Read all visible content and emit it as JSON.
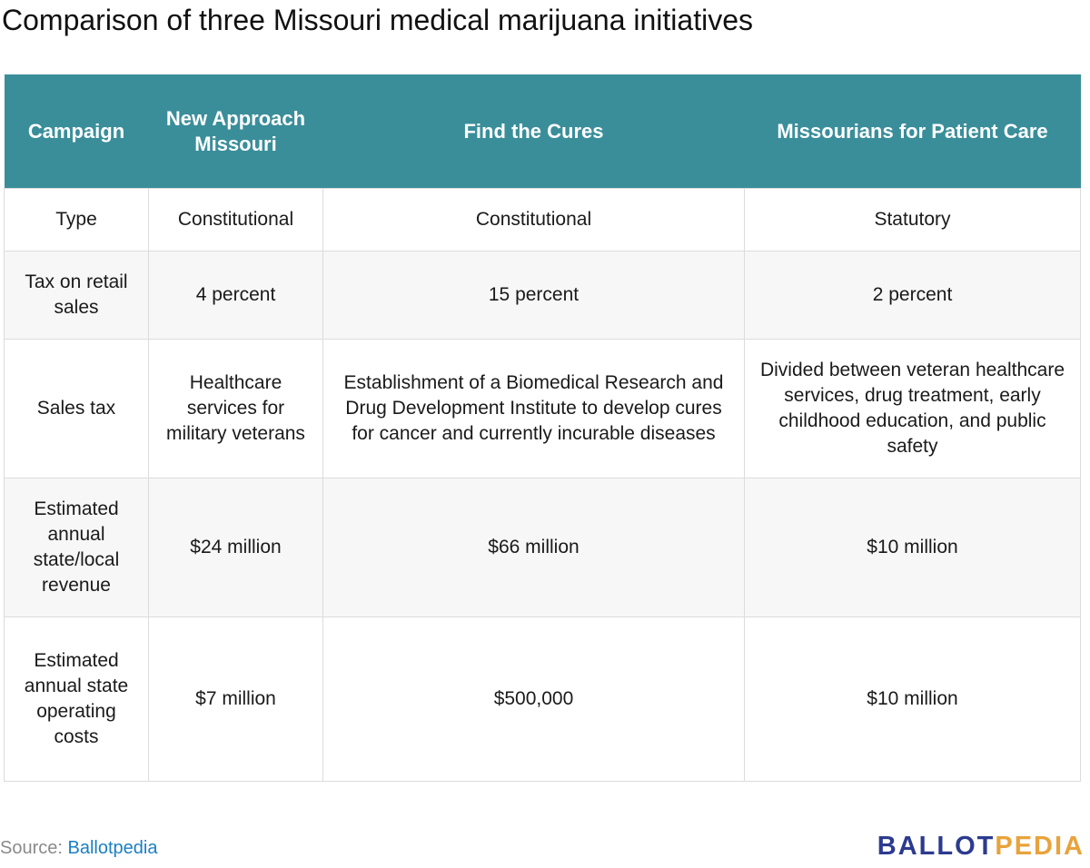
{
  "title": "Comparison of three Missouri medical marijuana initiatives",
  "table": {
    "headers": [
      "Campaign",
      "New Approach Missouri",
      "Find the Cures",
      "Missourians for Patient Care"
    ],
    "rows": [
      {
        "label": "Type",
        "cells": [
          "Constitutional",
          "Constitutional",
          "Statutory"
        ]
      },
      {
        "label": "Tax on retail sales",
        "cells": [
          "4 percent",
          "15 percent",
          "2 percent"
        ]
      },
      {
        "label": "Sales tax",
        "cells": [
          "Healthcare services for military veterans",
          "Establishment of a Biomedical Research and Drug Development Institute to develop cures for cancer and currently incurable diseases",
          "Divided between veteran healthcare services, drug treatment, early childhood education, and public safety"
        ]
      },
      {
        "label": "Estimated annual state/local revenue",
        "cells": [
          "$24 million",
          "$66 million",
          "$10 million"
        ]
      },
      {
        "label": "Estimated annual state operating costs",
        "cells": [
          "$7 million",
          "$500,000",
          "$10 million"
        ]
      }
    ]
  },
  "footer": {
    "source_prefix": "Source:",
    "source_link": "Ballotpedia",
    "logo_part1": "BALLOT",
    "logo_part2": "PEDIA"
  },
  "colors": {
    "header_bg": "#3a8e9a",
    "link": "#1a7fc4",
    "logo_blue": "#2c3b8f",
    "logo_gold": "#e8a33c"
  }
}
